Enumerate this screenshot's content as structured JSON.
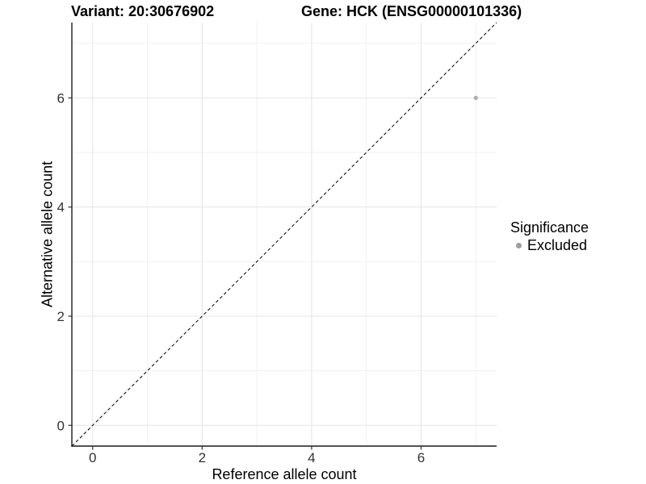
{
  "chart_data": {
    "type": "scatter",
    "titles": {
      "left": "Variant: 20:30676902",
      "right": "Gene: HCK (ENSG00000101336)"
    },
    "xlabel": "Reference allele count",
    "ylabel": "Alternative allele count",
    "xlim": [
      -0.38,
      7.38
    ],
    "ylim": [
      -0.38,
      7.38
    ],
    "x_ticks": [
      0,
      2,
      4,
      6
    ],
    "y_ticks": [
      0,
      2,
      4,
      6
    ],
    "x_minor": [
      1,
      3,
      5,
      7
    ],
    "y_minor": [
      1,
      3,
      5,
      7
    ],
    "grid": true,
    "series": [
      {
        "name": "Excluded",
        "color": "#ababab",
        "point_radius": 2.6,
        "points": [
          {
            "x": 7,
            "y": 6
          }
        ]
      }
    ],
    "reference_line": {
      "slope": 1,
      "intercept": 0,
      "style": "dashed",
      "color": "#000000"
    },
    "legend": {
      "title": "Significance",
      "position": "right",
      "items": [
        {
          "label": "Excluded",
          "color": "#9e9e9e"
        }
      ]
    },
    "colors": {
      "background": "#ffffff",
      "grid_major": "#e4e4e4",
      "grid_minor": "#f1f1f1",
      "axis_line": "#1a1a1a",
      "tick_mark": "#333333",
      "tick_label": "#333333",
      "text": "#000000"
    }
  }
}
